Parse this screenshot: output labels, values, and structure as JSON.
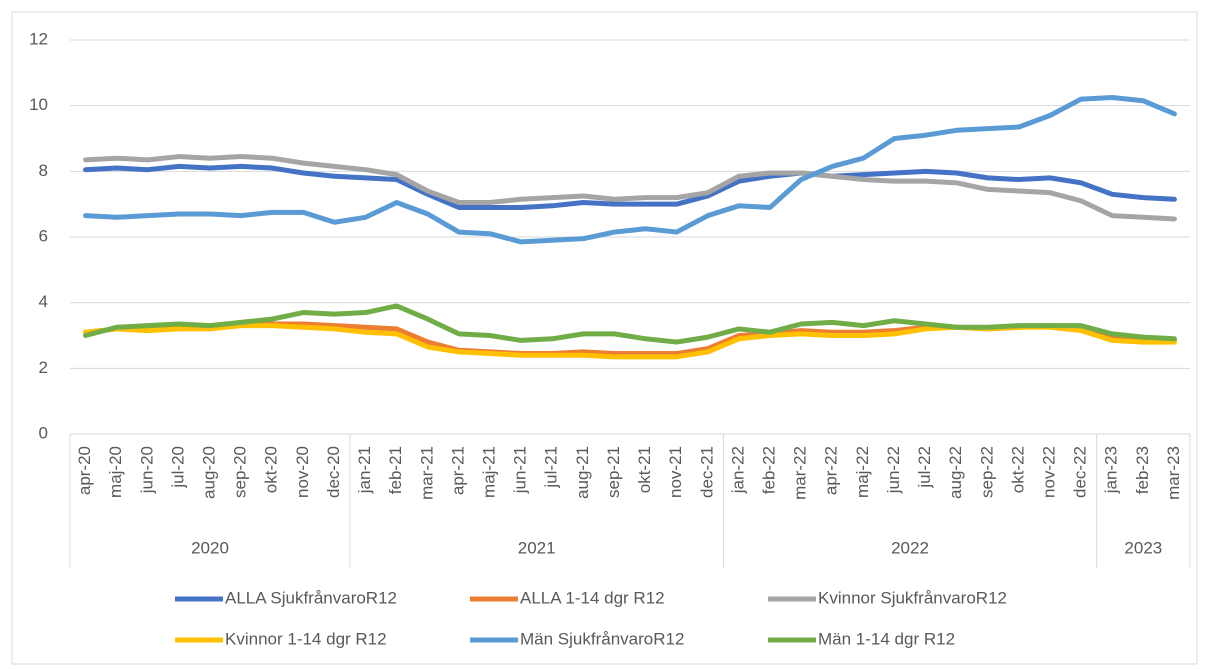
{
  "chart_data": {
    "type": "line",
    "categories": [
      "apr-20",
      "maj-20",
      "jun-20",
      "jul-20",
      "aug-20",
      "sep-20",
      "okt-20",
      "nov-20",
      "dec-20",
      "jan-21",
      "feb-21",
      "mar-21",
      "apr-21",
      "maj-21",
      "jun-21",
      "jul-21",
      "aug-21",
      "sep-21",
      "okt-21",
      "nov-21",
      "dec-21",
      "jan-22",
      "feb-22",
      "mar-22",
      "apr-22",
      "maj-22",
      "jun-22",
      "jul-22",
      "aug-22",
      "sep-22",
      "okt-22",
      "nov-22",
      "dec-22",
      "jan-23",
      "feb-23",
      "mar-23"
    ],
    "groups": [
      {
        "label": "2020",
        "span": 9
      },
      {
        "label": "2021",
        "span": 12
      },
      {
        "label": "2022",
        "span": 12
      },
      {
        "label": "2023",
        "span": 3
      }
    ],
    "ylim": [
      0,
      12
    ],
    "yticks": [
      0,
      2,
      4,
      6,
      8,
      10,
      12
    ],
    "grid": true,
    "series": [
      {
        "name": "ALLA SjukfrånvaroR12",
        "color": "#4472c4",
        "values": [
          8.05,
          8.1,
          8.05,
          8.15,
          8.1,
          8.15,
          8.1,
          7.95,
          7.85,
          7.8,
          7.75,
          7.3,
          6.9,
          6.9,
          6.9,
          6.95,
          7.05,
          7.0,
          7.0,
          7.0,
          7.25,
          7.7,
          7.85,
          7.95,
          7.85,
          7.9,
          7.95,
          8.0,
          7.95,
          7.8,
          7.75,
          7.8,
          7.65,
          7.3,
          7.2,
          7.15
        ]
      },
      {
        "name": "ALLA 1-14 dgr R12",
        "color": "#ed7d31",
        "values": [
          3.1,
          3.2,
          3.2,
          3.25,
          3.25,
          3.35,
          3.35,
          3.35,
          3.3,
          3.25,
          3.2,
          2.8,
          2.55,
          2.5,
          2.45,
          2.45,
          2.5,
          2.45,
          2.45,
          2.45,
          2.6,
          3.0,
          3.05,
          3.15,
          3.1,
          3.1,
          3.15,
          3.25,
          3.25,
          3.2,
          3.25,
          3.3,
          3.2,
          2.9,
          2.85,
          2.85
        ]
      },
      {
        "name": "Kvinnor SjukfrånvaroR12",
        "color": "#a5a5a5",
        "values": [
          8.35,
          8.4,
          8.35,
          8.45,
          8.4,
          8.45,
          8.4,
          8.25,
          8.15,
          8.05,
          7.9,
          7.4,
          7.05,
          7.05,
          7.15,
          7.2,
          7.25,
          7.15,
          7.2,
          7.2,
          7.35,
          7.85,
          7.95,
          7.95,
          7.85,
          7.75,
          7.7,
          7.7,
          7.65,
          7.45,
          7.4,
          7.35,
          7.1,
          6.65,
          6.6,
          6.55
        ]
      },
      {
        "name": "Kvinnor 1-14 dgr R12",
        "color": "#ffc000",
        "values": [
          3.1,
          3.2,
          3.15,
          3.2,
          3.2,
          3.3,
          3.3,
          3.25,
          3.2,
          3.1,
          3.05,
          2.65,
          2.5,
          2.45,
          2.4,
          2.4,
          2.4,
          2.35,
          2.35,
          2.35,
          2.5,
          2.9,
          3.0,
          3.05,
          3.0,
          3.0,
          3.05,
          3.2,
          3.25,
          3.2,
          3.25,
          3.25,
          3.15,
          2.85,
          2.8,
          2.8
        ]
      },
      {
        "name": "Män SjukfrånvaroR12",
        "color": "#5b9bd5",
        "values": [
          6.65,
          6.6,
          6.65,
          6.7,
          6.7,
          6.65,
          6.75,
          6.75,
          6.45,
          6.6,
          7.05,
          6.7,
          6.15,
          6.1,
          5.85,
          5.9,
          5.95,
          6.15,
          6.25,
          6.15,
          6.65,
          6.95,
          6.9,
          7.75,
          8.15,
          8.4,
          9.0,
          9.1,
          9.25,
          9.3,
          9.35,
          9.7,
          10.2,
          10.25,
          10.15,
          9.75
        ]
      },
      {
        "name": "Män 1-14 dgr R12",
        "color": "#70ad47",
        "values": [
          3.0,
          3.25,
          3.3,
          3.35,
          3.3,
          3.4,
          3.5,
          3.7,
          3.65,
          3.7,
          3.9,
          3.5,
          3.05,
          3.0,
          2.85,
          2.9,
          3.05,
          3.05,
          2.9,
          2.8,
          2.95,
          3.2,
          3.1,
          3.35,
          3.4,
          3.3,
          3.45,
          3.35,
          3.25,
          3.25,
          3.3,
          3.3,
          3.3,
          3.05,
          2.95,
          2.9
        ]
      }
    ]
  }
}
